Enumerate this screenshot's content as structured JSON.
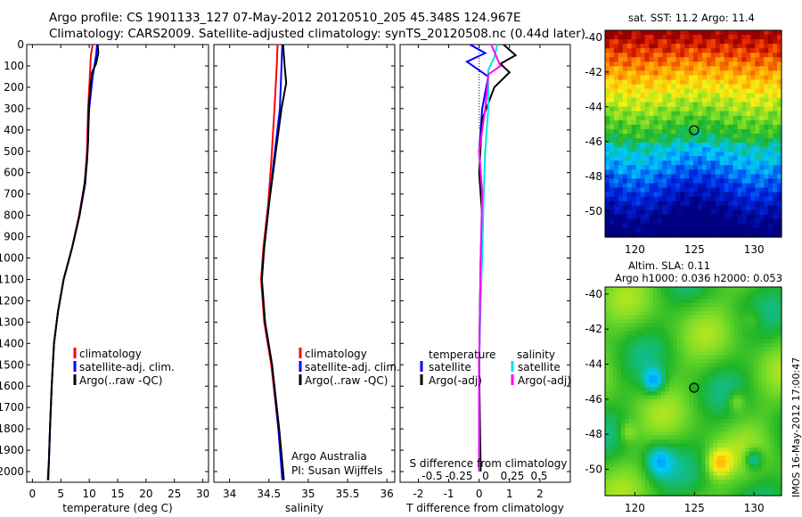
{
  "header": {
    "line1": "Argo profile: CS 1901133_127 07-May-2012 20120510_205 45.348S 124.967E",
    "line2": "Climatology: CARS2009. Satellite-adjusted climatology: synTS_20120508.nc (0.44d later)"
  },
  "colors": {
    "climatology": "#ff0000",
    "satellite": "#0000ff",
    "argo": "#000000",
    "satellite_salinity": "#00e5e5",
    "argo_salinity": "#ff00ff"
  },
  "chart_data": [
    {
      "type": "line",
      "xlabel": "temperature (deg C)",
      "xlim": [
        -1,
        31
      ],
      "xticks": [
        0,
        5,
        10,
        15,
        20,
        25,
        30
      ],
      "ylim": [
        2050,
        0
      ],
      "yticks": [
        0,
        100,
        200,
        300,
        400,
        500,
        600,
        700,
        800,
        900,
        1000,
        1100,
        1200,
        1300,
        1400,
        1500,
        1600,
        1700,
        1800,
        1900,
        2000
      ],
      "legend": [
        "climatology",
        "satellite-adj. clim.",
        "Argo(..raw -QC)"
      ],
      "series": [
        {
          "name": "climatology",
          "color": "climatology",
          "points": [
            [
              10.6,
              0
            ],
            [
              10.3,
              50
            ],
            [
              10.1,
              150
            ],
            [
              9.8,
              300
            ],
            [
              9.6,
              500
            ],
            [
              9.2,
              650
            ],
            [
              8.2,
              800
            ],
            [
              7.0,
              950
            ],
            [
              5.5,
              1100
            ],
            [
              4.5,
              1250
            ],
            [
              3.8,
              1400
            ],
            [
              3.4,
              1600
            ],
            [
              3.1,
              1800
            ],
            [
              2.9,
              1950
            ],
            [
              2.7,
              2040
            ]
          ]
        },
        {
          "name": "satellite-adj. clim.",
          "color": "satellite",
          "points": [
            [
              11.4,
              0
            ],
            [
              11.2,
              50
            ],
            [
              10.6,
              150
            ],
            [
              10.0,
              300
            ],
            [
              9.7,
              500
            ],
            [
              9.3,
              650
            ],
            [
              8.3,
              800
            ],
            [
              7.0,
              950
            ],
            [
              5.5,
              1100
            ],
            [
              4.5,
              1250
            ],
            [
              3.8,
              1400
            ],
            [
              3.4,
              1600
            ],
            [
              3.1,
              1800
            ],
            [
              2.9,
              1950
            ],
            [
              2.7,
              2040
            ]
          ]
        },
        {
          "name": "Argo(..raw -QC)",
          "color": "argo",
          "points": [
            [
              11.5,
              0
            ],
            [
              11.6,
              40
            ],
            [
              11.2,
              90
            ],
            [
              10.5,
              130
            ],
            [
              10.2,
              200
            ],
            [
              9.9,
              300
            ],
            [
              9.8,
              450
            ],
            [
              9.6,
              550
            ],
            [
              9.2,
              650
            ],
            [
              8.3,
              800
            ],
            [
              7.0,
              950
            ],
            [
              5.5,
              1100
            ],
            [
              4.5,
              1250
            ],
            [
              3.8,
              1400
            ],
            [
              3.4,
              1600
            ],
            [
              3.1,
              1800
            ],
            [
              2.9,
              1950
            ],
            [
              2.8,
              2040
            ]
          ]
        }
      ]
    },
    {
      "type": "line",
      "xlabel": "salinity",
      "xlim": [
        33.8,
        36.1
      ],
      "xticks": [
        34,
        34.5,
        35,
        35.5,
        36
      ],
      "ylim": [
        2050,
        0
      ],
      "legend": [
        "climatology",
        "satellite-adj. clim.",
        "Argo(..raw -QC)"
      ],
      "annotation": [
        "Argo Australia",
        "PI: Susan Wijffels"
      ],
      "series": [
        {
          "name": "climatology",
          "color": "climatology",
          "points": [
            [
              34.61,
              0
            ],
            [
              34.6,
              100
            ],
            [
              34.57,
              300
            ],
            [
              34.53,
              550
            ],
            [
              34.49,
              750
            ],
            [
              34.43,
              950
            ],
            [
              34.4,
              1100
            ],
            [
              34.44,
              1300
            ],
            [
              34.53,
              1500
            ],
            [
              34.62,
              1800
            ],
            [
              34.68,
              2040
            ]
          ]
        },
        {
          "name": "satellite-adj. clim.",
          "color": "satellite",
          "points": [
            [
              34.67,
              0
            ],
            [
              34.66,
              100
            ],
            [
              34.64,
              300
            ],
            [
              34.56,
              550
            ],
            [
              34.5,
              750
            ],
            [
              34.44,
              950
            ],
            [
              34.41,
              1100
            ],
            [
              34.45,
              1300
            ],
            [
              34.54,
              1500
            ],
            [
              34.62,
              1800
            ],
            [
              34.67,
              2040
            ]
          ]
        },
        {
          "name": "Argo(..raw -QC)",
          "color": "argo",
          "points": [
            [
              34.68,
              0
            ],
            [
              34.7,
              100
            ],
            [
              34.72,
              180
            ],
            [
              34.66,
              300
            ],
            [
              34.57,
              550
            ],
            [
              34.5,
              750
            ],
            [
              34.44,
              950
            ],
            [
              34.41,
              1100
            ],
            [
              34.45,
              1300
            ],
            [
              34.54,
              1500
            ],
            [
              34.63,
              1800
            ],
            [
              34.69,
              2040
            ]
          ]
        }
      ]
    },
    {
      "type": "line",
      "xlabel": "T difference from climatology",
      "xlim": [
        -2.6,
        3.0
      ],
      "xticks": [
        -2,
        -1,
        0,
        1,
        2
      ],
      "top_label": "S difference from climatology",
      "top_ticks": [
        "-0.5",
        "-0.25",
        "0",
        "0.25",
        "0.5"
      ],
      "legend_left": {
        "title": "temperature",
        "items": [
          "satellite",
          "Argo(-adj)"
        ]
      },
      "legend_right": {
        "title": "salinity",
        "items": [
          "satellite",
          "Argo(-adj)"
        ]
      },
      "series": [
        {
          "name": "temperature satellite",
          "color": "satellite",
          "points": [
            [
              -0.3,
              0
            ],
            [
              0.2,
              40
            ],
            [
              -0.4,
              80
            ],
            [
              0.3,
              150
            ],
            [
              0.1,
              300
            ],
            [
              0.0,
              500
            ],
            [
              0.1,
              700
            ],
            [
              0.1,
              900
            ],
            [
              0.05,
              1100
            ],
            [
              0.0,
              1500
            ],
            [
              0.0,
              2000
            ]
          ]
        },
        {
          "name": "temperature Argo(-adj)",
          "color": "argo",
          "points": [
            [
              0.8,
              0
            ],
            [
              1.2,
              50
            ],
            [
              0.7,
              90
            ],
            [
              1.0,
              130
            ],
            [
              0.5,
              200
            ],
            [
              0.1,
              350
            ],
            [
              0.0,
              600
            ],
            [
              0.1,
              800
            ],
            [
              0.05,
              1000
            ],
            [
              0.0,
              1500
            ],
            [
              0.05,
              2000
            ]
          ]
        },
        {
          "name": "salinity satellite",
          "color": "satellite_salinity",
          "points": [
            [
              0.6,
              0
            ],
            [
              0.5,
              60
            ],
            [
              0.3,
              120
            ],
            [
              0.3,
              300
            ],
            [
              0.2,
              500
            ],
            [
              0.15,
              700
            ],
            [
              0.1,
              1000
            ],
            [
              0.05,
              1200
            ],
            [
              0.0,
              1500
            ],
            [
              0.0,
              2000
            ]
          ]
        },
        {
          "name": "salinity Argo(-adj)",
          "color": "argo_salinity",
          "points": [
            [
              0.4,
              0
            ],
            [
              0.7,
              100
            ],
            [
              0.3,
              140
            ],
            [
              0.2,
              300
            ],
            [
              0.0,
              500
            ],
            [
              0.1,
              700
            ],
            [
              0.05,
              1000
            ],
            [
              0.0,
              1500
            ],
            [
              0.0,
              2000
            ]
          ]
        }
      ]
    },
    {
      "type": "heatmap",
      "title": "sat. SST: 11.2 Argo: 11.4",
      "xticks": [
        120,
        125,
        130
      ],
      "yticks": [
        -40,
        -42,
        -44,
        -46,
        -48,
        -50
      ],
      "xlim": [
        117.5,
        132.3
      ],
      "ylim": [
        -51.5,
        -39.6
      ],
      "marker": [
        124.967,
        -45.348
      ]
    },
    {
      "type": "heatmap",
      "title_line1": "Altim. SLA: 0.11",
      "title_line2": "Argo h1000: 0.036 h2000: 0.053",
      "xticks": [
        120,
        125,
        130
      ],
      "yticks": [
        -40,
        -42,
        -44,
        -46,
        -48,
        -50
      ],
      "xlim": [
        117.5,
        132.3
      ],
      "ylim": [
        -51.5,
        -39.6
      ],
      "marker": [
        124.967,
        -45.348
      ]
    }
  ],
  "timestamp": "IMOS 16-May-2012 17:00:47"
}
